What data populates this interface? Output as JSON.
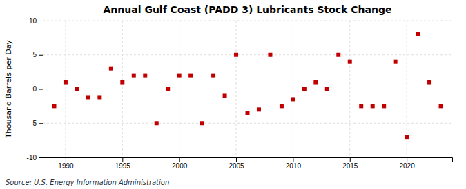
{
  "chart_data": {
    "type": "scatter",
    "title": "Annual Gulf Coast (PADD 3) Lubricants Stock Change",
    "ylabel": "Thousand Barrels per Day",
    "source": "Source: U.S. Energy Information Administration",
    "x": [
      1989,
      1990,
      1991,
      1992,
      1993,
      1994,
      1995,
      1996,
      1997,
      1998,
      1999,
      2000,
      2001,
      2002,
      2003,
      2004,
      2005,
      2006,
      2007,
      2008,
      2009,
      2010,
      2011,
      2012,
      2013,
      2014,
      2015,
      2016,
      2017,
      2018,
      2019,
      2020,
      2021,
      2022,
      2023
    ],
    "values": [
      -2.5,
      1.0,
      0.0,
      -1.2,
      -1.2,
      3.0,
      1.0,
      2.0,
      2.0,
      -5.0,
      0.0,
      2.0,
      2.0,
      -5.0,
      2.0,
      -1.0,
      5.0,
      -3.5,
      -3.0,
      5.0,
      -2.5,
      -1.5,
      0.0,
      1.0,
      0.0,
      5.0,
      4.0,
      -2.5,
      -2.5,
      -2.5,
      4.0,
      -7.0,
      8.0,
      1.0,
      -2.5
    ],
    "color": "#c00000",
    "marker": "square",
    "xlim": [
      1988,
      2024
    ],
    "xticks": [
      1990,
      1995,
      2000,
      2005,
      2010,
      2015,
      2020
    ],
    "ylim": [
      -10,
      10
    ],
    "yticks": [
      -10,
      -5,
      0,
      5,
      10
    ],
    "grid": true
  }
}
